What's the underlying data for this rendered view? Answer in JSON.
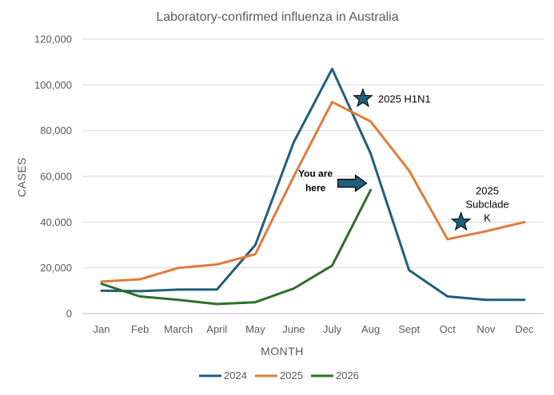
{
  "chart_data": {
    "type": "line",
    "title": "Laboratory-confirmed influenza in Australia",
    "xlabel": "MONTH",
    "ylabel": "CASES",
    "ylim": [
      0,
      120000
    ],
    "yticks": [
      0,
      20000,
      40000,
      60000,
      80000,
      100000,
      120000
    ],
    "ytick_labels": [
      "0",
      "20,000",
      "40,000",
      "60,000",
      "80,000",
      "100,000",
      "120,000"
    ],
    "grid": true,
    "legend_position": "bottom",
    "categories": [
      "Jan",
      "Feb",
      "March",
      "April",
      "May",
      "June",
      "July",
      "Aug",
      "Sept",
      "Oct",
      "Nov",
      "Dec"
    ],
    "series": [
      {
        "name": "2024",
        "color": "#1f5f7a",
        "values": [
          10000,
          9800,
          10500,
          10500,
          30000,
          75000,
          107000,
          70000,
          19000,
          7500,
          6000,
          6000
        ]
      },
      {
        "name": "2025",
        "color": "#e07b39",
        "values": [
          14000,
          15000,
          20000,
          21500,
          26000,
          60000,
          92500,
          84000,
          62500,
          32500,
          36000,
          40000
        ]
      },
      {
        "name": "2026",
        "color": "#2e6e2a",
        "values": [
          13000,
          7500,
          6000,
          4200,
          5000,
          11000,
          21000,
          54000,
          null,
          null,
          null,
          null
        ]
      }
    ],
    "annotations": [
      {
        "id": "h1n1",
        "icon": "star-icon",
        "lines": [
          "2025 H1N1"
        ],
        "x": "Aug",
        "x_offset": -0.2,
        "y": 94000
      },
      {
        "id": "subclade",
        "icon": "star-icon",
        "lines": [
          "2025",
          "Subclade",
          "K"
        ],
        "x": "Oct",
        "x_offset": 0.35,
        "y": 40000
      },
      {
        "id": "you-are-here",
        "icon": "arrow-right-icon",
        "lines": [
          "You are",
          "here"
        ],
        "x": "Aug",
        "y": 57000
      }
    ],
    "annotation_color": "#1f5f7a"
  }
}
